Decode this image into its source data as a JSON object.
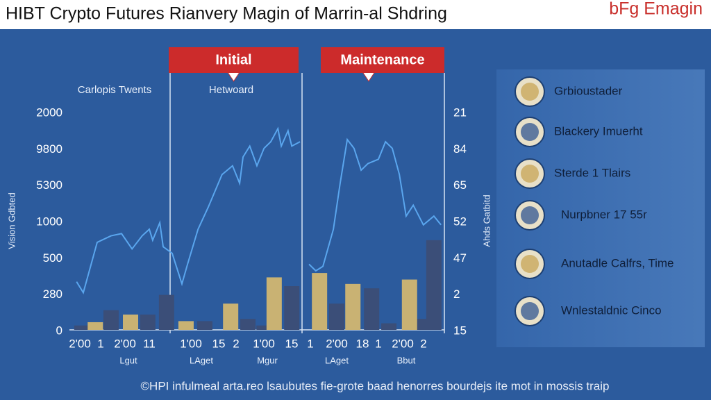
{
  "header": {
    "title": "HIBT Crypto Futures Rianvery Magin of Marrin-al Shdring",
    "logo": "bFg Emagin"
  },
  "chart_data": {
    "type": "bar",
    "panels": [
      "Initial",
      "Maintenance"
    ],
    "subtitles": [
      "Carlopis Twents",
      "Hetwoard"
    ],
    "ylabel": "Vision Gdbted",
    "y2label": "Ahds Gatbitd",
    "y_labels": [
      "2000",
      "9800",
      "5300",
      "1000",
      "500",
      "280",
      "0"
    ],
    "y2_labels": [
      "21",
      "84",
      "65",
      "52",
      "47",
      "2",
      "15"
    ],
    "x_labels": [
      "2'00",
      "1",
      "2'00",
      "11",
      "1'00",
      "15",
      "2",
      "1'00",
      "15",
      "1",
      "2'00",
      "18",
      "1",
      "2'00",
      "2"
    ],
    "x_sublabels": [
      "Lgut",
      "LAget",
      "Mgur",
      "LAget",
      "Bbut"
    ],
    "xlim": [
      0,
      100
    ],
    "ylim": [
      0,
      100
    ],
    "series": [
      {
        "type": "bar",
        "color": "#3b4e78",
        "x": [
          3.3,
          11.1,
          20.9,
          25.9,
          36.1,
          47.6,
          51.9,
          59.3,
          71.3,
          80.6,
          85.2,
          94.4,
          97.2
        ],
        "values": [
          2,
          9,
          7,
          16,
          4,
          5,
          2,
          20,
          12,
          19,
          3,
          5,
          41
        ]
      },
      {
        "type": "bar",
        "color": "#c9b273",
        "x": [
          6.9,
          16.3,
          31.1,
          43,
          54.6,
          66.7,
          75.6,
          90.7
        ],
        "values": [
          3.5,
          7,
          4,
          12,
          24,
          26,
          21,
          23
        ]
      },
      {
        "type": "line",
        "color": "#5aa6ee",
        "x": [
          1.9,
          3.7,
          7.4,
          11.1,
          13.9,
          16.7,
          19.4,
          21.3,
          22.2,
          24.1,
          25,
          27.4,
          30,
          31.5,
          34.3,
          37,
          40.7,
          43.5,
          45.4,
          46.3,
          48.1,
          50,
          51.9,
          53.7,
          55.6,
          56.5,
          58.3,
          59.3,
          61.5,
          62.7,
          63.9,
          65.7,
          67.6,
          70.4,
          72.2,
          74.1,
          75.9,
          77.8,
          79.6,
          82.4,
          84.3,
          86.1,
          88,
          89.8,
          91.7,
          94.4,
          97.2,
          99.1
        ],
        "values": [
          22,
          17,
          40,
          43,
          44,
          37,
          43,
          46,
          41,
          49,
          38,
          35,
          21,
          30,
          46,
          56,
          71,
          75,
          67,
          79,
          84,
          75,
          83,
          86,
          92,
          84,
          91,
          84,
          86,
          null,
          30,
          27,
          29,
          46,
          67,
          87,
          83,
          73,
          76,
          78,
          86,
          83,
          71,
          52,
          57,
          48,
          52,
          48
        ]
      }
    ],
    "legend": [
      "Grbioustader",
      "Blackery Imuerht",
      "Sterde 1 Tlairs",
      "Nurpbner 17 55r",
      "Anutadle Calfrs, Time",
      "Wnlestaldnic Cinco"
    ]
  },
  "footer": "©HPI infulmeal arta.reo lsaubutes  fie-grote baad henorres bourdejs ite mot in mossis traip"
}
